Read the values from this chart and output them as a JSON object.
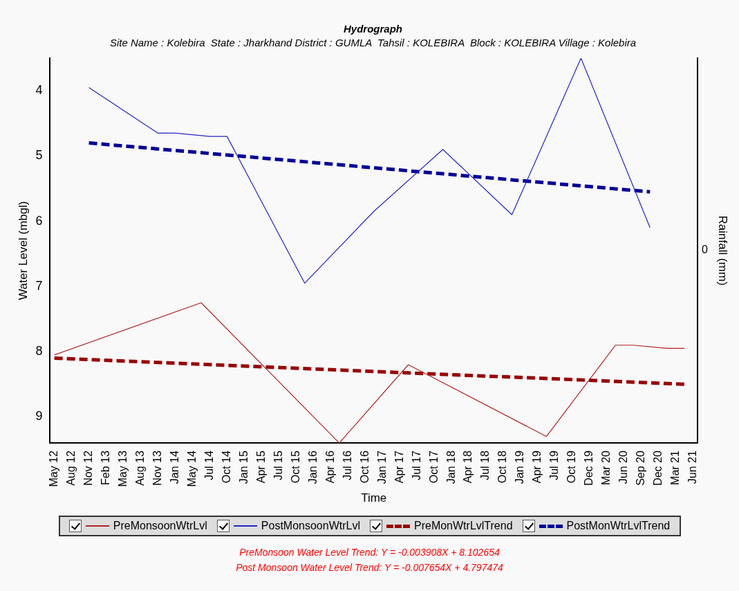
{
  "chart_data": {
    "type": "line",
    "title": "Hydrograph",
    "subtitle": "Site Name : Kolebira  State : Jharkhand District : GUMLA  Tahsil : KOLEBIRA  Block : KOLEBIRA Village : Kolebira",
    "xlabel": "Time",
    "ylabel": "Water Level (mbgl)",
    "y2label": "Rainfall (mm)",
    "categories": [
      "May 12",
      null,
      "Aug 12",
      null,
      "Nov 12",
      null,
      "Feb 13",
      null,
      "May 13",
      null,
      "Aug 13",
      null,
      "Nov 13",
      null,
      "Jan 14",
      null,
      "May 14",
      null,
      "Jul 14",
      null,
      "Oct 14",
      null,
      "Jan 15",
      null,
      "Apr 15",
      null,
      "Jul 15",
      null,
      "Oct 15",
      null,
      "Jan 16",
      null,
      "Apr 16",
      null,
      "Jul 16",
      null,
      "Oct 16",
      null,
      "Jan 17",
      null,
      "Apr 17",
      null,
      "Jul 17",
      null,
      "Oct 17",
      null,
      "Jan 18",
      null,
      "Apr 18",
      null,
      "Jul 18",
      null,
      "Oct 18",
      null,
      "Jan 19",
      null,
      "Apr 19",
      null,
      "Jul 19",
      null,
      "Oct 19",
      null,
      "Dec 19",
      null,
      "Mar 20",
      null,
      "Jun 20",
      null,
      "Sep 20",
      null,
      "Dec 20",
      null,
      "Mar 21",
      null,
      "Jun 21"
    ],
    "series": [
      {
        "name": "PreMonsoonWtrLvl",
        "color": "#b22222",
        "line_style": "solid",
        "values": [
          8.05,
          null,
          null,
          null,
          null,
          null,
          null,
          null,
          null,
          null,
          null,
          null,
          null,
          null,
          null,
          null,
          null,
          7.25,
          null,
          null,
          null,
          null,
          null,
          null,
          null,
          null,
          null,
          null,
          null,
          null,
          null,
          null,
          null,
          9.4,
          null,
          null,
          null,
          null,
          null,
          null,
          null,
          8.2,
          null,
          null,
          null,
          null,
          null,
          null,
          null,
          null,
          null,
          null,
          null,
          null,
          null,
          null,
          null,
          9.3,
          null,
          null,
          null,
          null,
          null,
          null,
          null,
          7.9,
          null,
          7.9,
          null,
          null,
          null,
          7.95,
          null,
          7.95,
          null
        ]
      },
      {
        "name": "PostMonsoonWtrLvl",
        "color": "#2323c8",
        "line_style": "solid",
        "values": [
          null,
          null,
          null,
          null,
          3.95,
          null,
          null,
          null,
          null,
          null,
          null,
          null,
          4.65,
          null,
          4.65,
          null,
          null,
          null,
          4.7,
          null,
          4.7,
          null,
          null,
          null,
          null,
          null,
          null,
          null,
          null,
          6.95,
          null,
          null,
          null,
          null,
          null,
          null,
          null,
          5.85,
          null,
          null,
          null,
          null,
          null,
          null,
          null,
          4.9,
          null,
          null,
          null,
          null,
          null,
          null,
          null,
          5.9,
          null,
          null,
          null,
          null,
          null,
          null,
          null,
          3.5,
          null,
          null,
          null,
          null,
          null,
          null,
          null,
          6.1,
          null,
          null,
          null,
          null,
          null
        ]
      },
      {
        "name": "PreMonWtrLvlTrend",
        "color": "#990000",
        "line_style": "dashed",
        "values": [
          8.1,
          null,
          null,
          null,
          null,
          null,
          null,
          null,
          null,
          null,
          null,
          null,
          null,
          null,
          null,
          null,
          null,
          null,
          null,
          null,
          null,
          null,
          null,
          null,
          null,
          null,
          null,
          null,
          null,
          null,
          null,
          null,
          null,
          null,
          null,
          null,
          null,
          null,
          null,
          null,
          null,
          null,
          null,
          null,
          null,
          null,
          null,
          null,
          null,
          null,
          null,
          null,
          null,
          null,
          null,
          null,
          null,
          null,
          null,
          null,
          null,
          null,
          null,
          null,
          null,
          null,
          null,
          null,
          null,
          null,
          null,
          null,
          null,
          8.5,
          null
        ]
      },
      {
        "name": "PostMonWtrLvlTrend",
        "color": "#000099",
        "line_style": "dashed",
        "values": [
          null,
          null,
          null,
          null,
          4.8,
          null,
          null,
          null,
          null,
          null,
          null,
          null,
          null,
          null,
          null,
          null,
          null,
          null,
          null,
          null,
          null,
          null,
          null,
          null,
          null,
          null,
          null,
          null,
          null,
          null,
          null,
          null,
          null,
          null,
          null,
          null,
          null,
          null,
          null,
          null,
          null,
          null,
          null,
          null,
          null,
          null,
          null,
          null,
          null,
          null,
          null,
          null,
          null,
          null,
          null,
          null,
          null,
          null,
          null,
          null,
          null,
          null,
          null,
          null,
          null,
          null,
          null,
          null,
          null,
          5.55,
          null,
          null,
          null,
          null,
          null
        ]
      }
    ],
    "ylim": [
      9.4,
      3.5
    ],
    "yticks": [
      4,
      5,
      6,
      7,
      8,
      9
    ],
    "grid": false,
    "legend": "bottom",
    "marker": "none",
    "annotations": [
      "0",
      "PreMonsoon Water Level Trend: Y = -0.003908X + 8.102654",
      "Post Monsoon Water Level Trend: Y = -0.007654X + 4.797474"
    ]
  }
}
